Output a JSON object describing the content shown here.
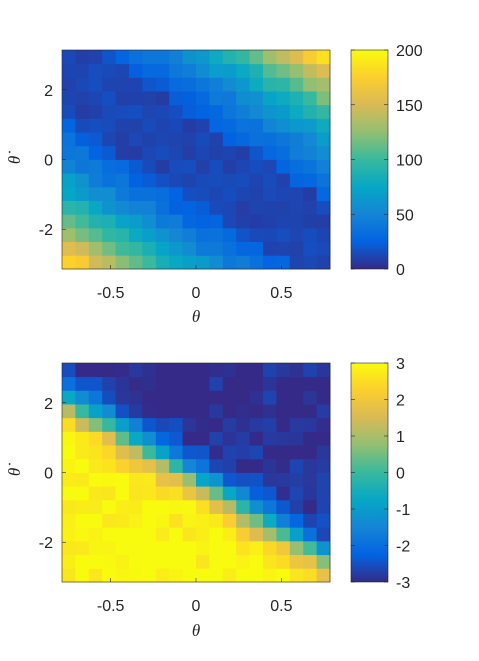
{
  "chart_data": [
    {
      "type": "heatmap",
      "title": "",
      "xlabel": "θ",
      "ylabel": "θ̇",
      "xlim": [
        -0.785,
        0.785
      ],
      "ylim": [
        -3.14,
        3.14
      ],
      "x_ticks": [
        "-0.5",
        "0",
        "0.5"
      ],
      "x_tick_values": [
        -0.5,
        0,
        0.5
      ],
      "y_ticks": [
        "-2",
        "0",
        "2"
      ],
      "y_tick_values": [
        -2,
        0,
        2
      ],
      "colorbar": {
        "range": [
          0,
          200
        ],
        "ticks": [
          "0",
          "50",
          "100",
          "150",
          "200"
        ],
        "tick_values": [
          0,
          50,
          100,
          150,
          200
        ]
      },
      "colormap": "parula",
      "grid_cols": 20,
      "grid_rows": 16,
      "model": {
        "base": 12,
        "quad": 20,
        "cross": 3.2,
        "scale": 1.2,
        "noise": 6
      },
      "grid": false
    },
    {
      "type": "heatmap",
      "title": "",
      "xlabel": "θ",
      "ylabel": "θ̇",
      "xlim": [
        -0.785,
        0.785
      ],
      "ylim": [
        -3.14,
        3.14
      ],
      "x_ticks": [
        "-0.5",
        "0",
        "0.5"
      ],
      "x_tick_values": [
        -0.5,
        0,
        0.5
      ],
      "y_ticks": [
        "-2",
        "0",
        "2"
      ],
      "y_tick_values": [
        -2,
        0,
        2
      ],
      "colorbar": {
        "range": [
          -3,
          3
        ],
        "ticks": [
          "3",
          "2",
          "1",
          "0",
          "-1",
          "-2",
          "-3"
        ],
        "tick_values": [
          3,
          2,
          1,
          0,
          -1,
          -2,
          -3
        ]
      },
      "colormap": "parula",
      "grid_cols": 20,
      "grid_rows": 16,
      "model": {
        "slope": -1.6,
        "theta_gain": -3.0,
        "offset": 0.2,
        "sharpness": 1.5,
        "amp": 3.0,
        "noise": 0.35
      },
      "grid": false
    }
  ]
}
